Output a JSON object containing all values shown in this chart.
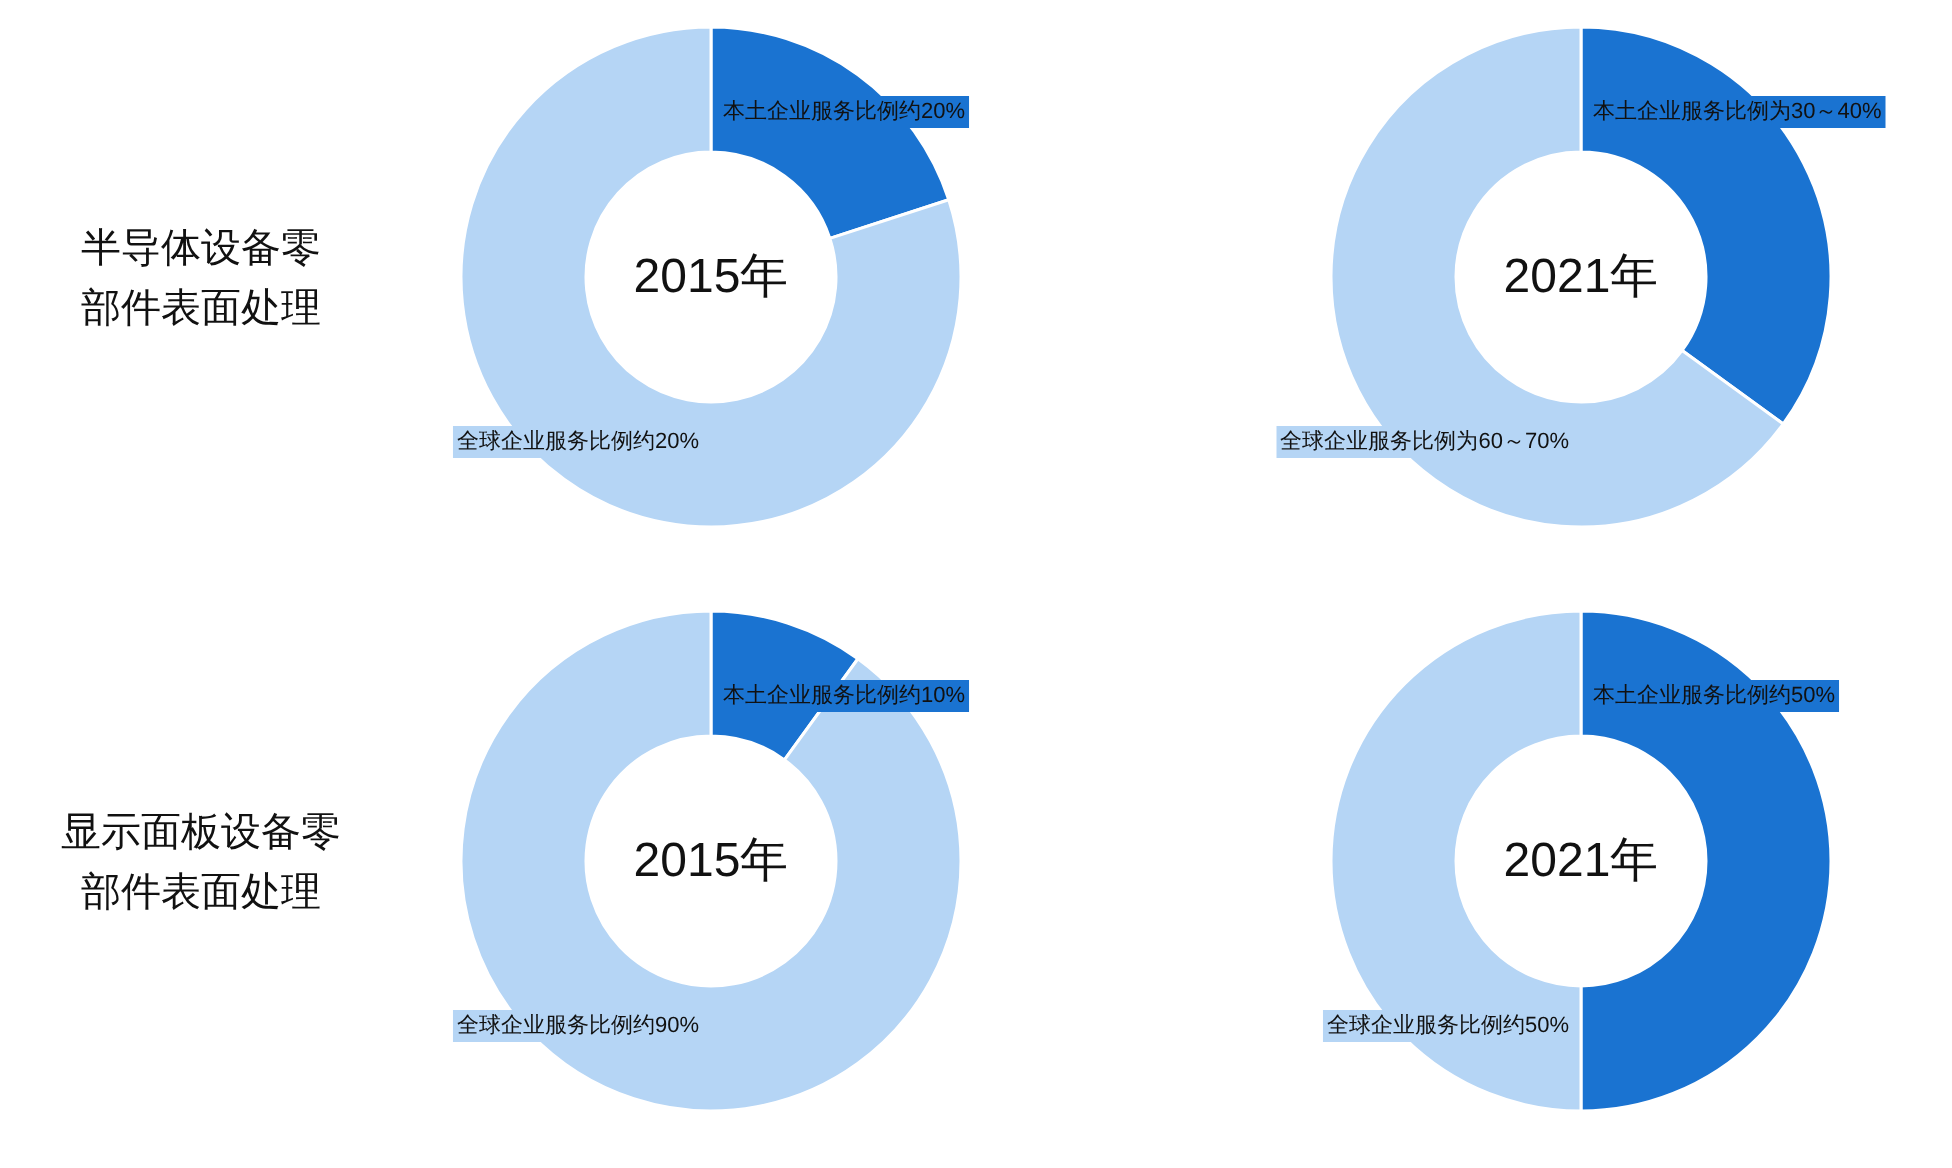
{
  "chart_data": [
    {
      "type": "donut",
      "title": "2015年",
      "categories": [
        "本土企业服务比例约20%",
        "全球企业服务比例约20%"
      ],
      "values": [
        20,
        80
      ],
      "colors": [
        "#1a73d1",
        "#b5d5f5"
      ],
      "annotations": [
        "半导体设备零",
        "部件表面处理"
      ]
    },
    {
      "type": "donut",
      "title": "2021年",
      "categories": [
        "本土企业服务比例为30～40%",
        "全球企业服务比例为60～70%"
      ],
      "values": [
        35,
        65
      ],
      "colors": [
        "#1a73d1",
        "#b5d5f5"
      ]
    },
    {
      "type": "donut",
      "title": "2015年",
      "categories": [
        "本土企业服务比例约10%",
        "全球企业服务比例约90%"
      ],
      "values": [
        10,
        90
      ],
      "colors": [
        "#1a73d1",
        "#b5d5f5"
      ],
      "annotations": [
        "显示面板设备零",
        "部件表面处理"
      ]
    },
    {
      "type": "donut",
      "title": "2021年",
      "categories": [
        "本土企业服务比例约50%",
        "全球企业服务比例约50%"
      ],
      "values": [
        50,
        50
      ],
      "colors": [
        "#1a73d1",
        "#b5d5f5"
      ]
    }
  ]
}
